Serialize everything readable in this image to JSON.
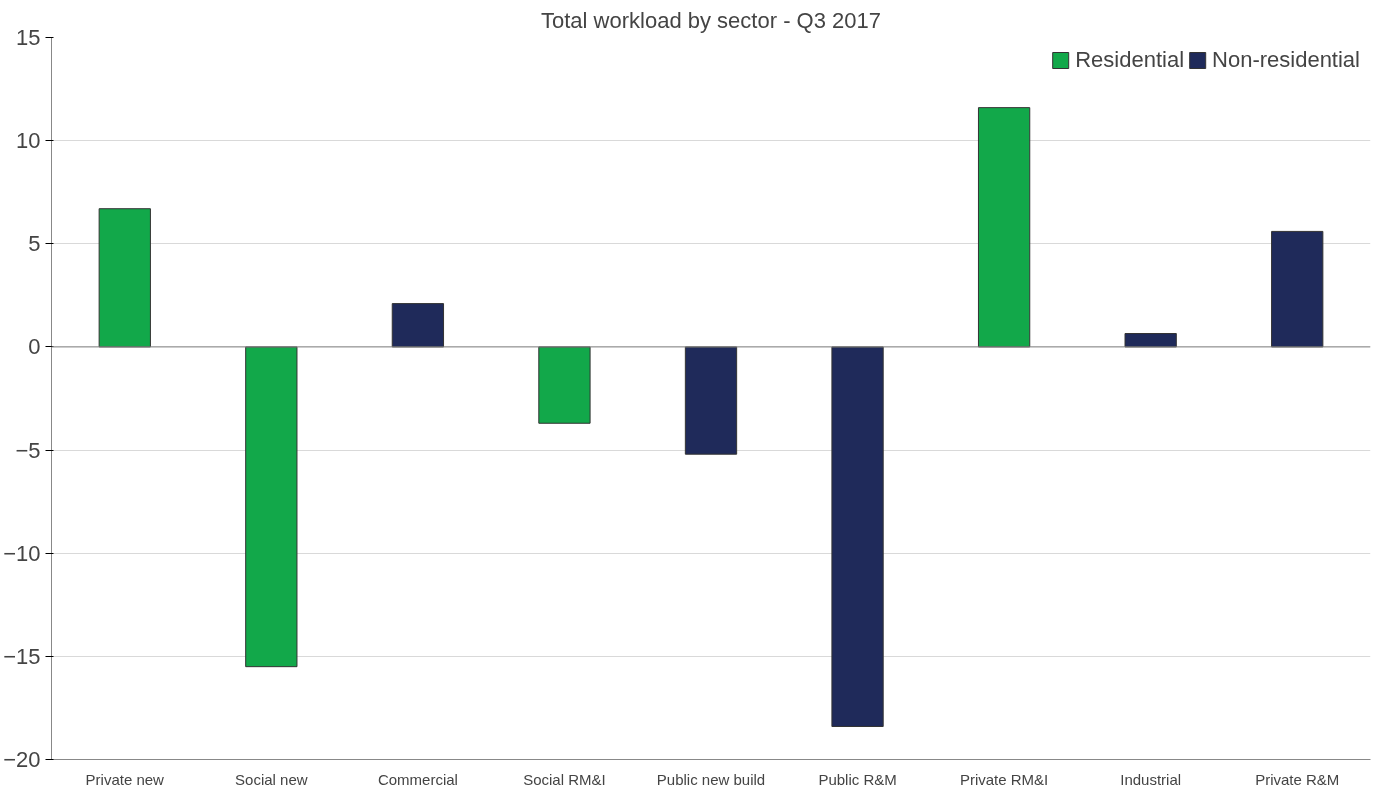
{
  "chart_data": {
    "type": "bar",
    "title": "Total workload by sector - Q3 2017",
    "categories": [
      "Private new",
      "Social new",
      "Commercial",
      "Social RM&I",
      "Public new build",
      "Public R&M",
      "Private RM&I",
      "Industrial",
      "Private R&M"
    ],
    "series": [
      {
        "name": "Residential",
        "color": "#12a84a",
        "values": [
          6.7,
          -15.5,
          null,
          -3.7,
          null,
          null,
          11.6,
          null,
          null
        ]
      },
      {
        "name": "Non-residential",
        "color": "#1f2a5a",
        "values": [
          null,
          null,
          2.1,
          null,
          -5.2,
          -18.4,
          null,
          0.65,
          5.6
        ]
      }
    ],
    "ylim": [
      -20,
      15
    ],
    "yticks": [
      -20,
      -15,
      -10,
      -5,
      0,
      5,
      10,
      15
    ],
    "grid": "y",
    "legend": "top right"
  }
}
